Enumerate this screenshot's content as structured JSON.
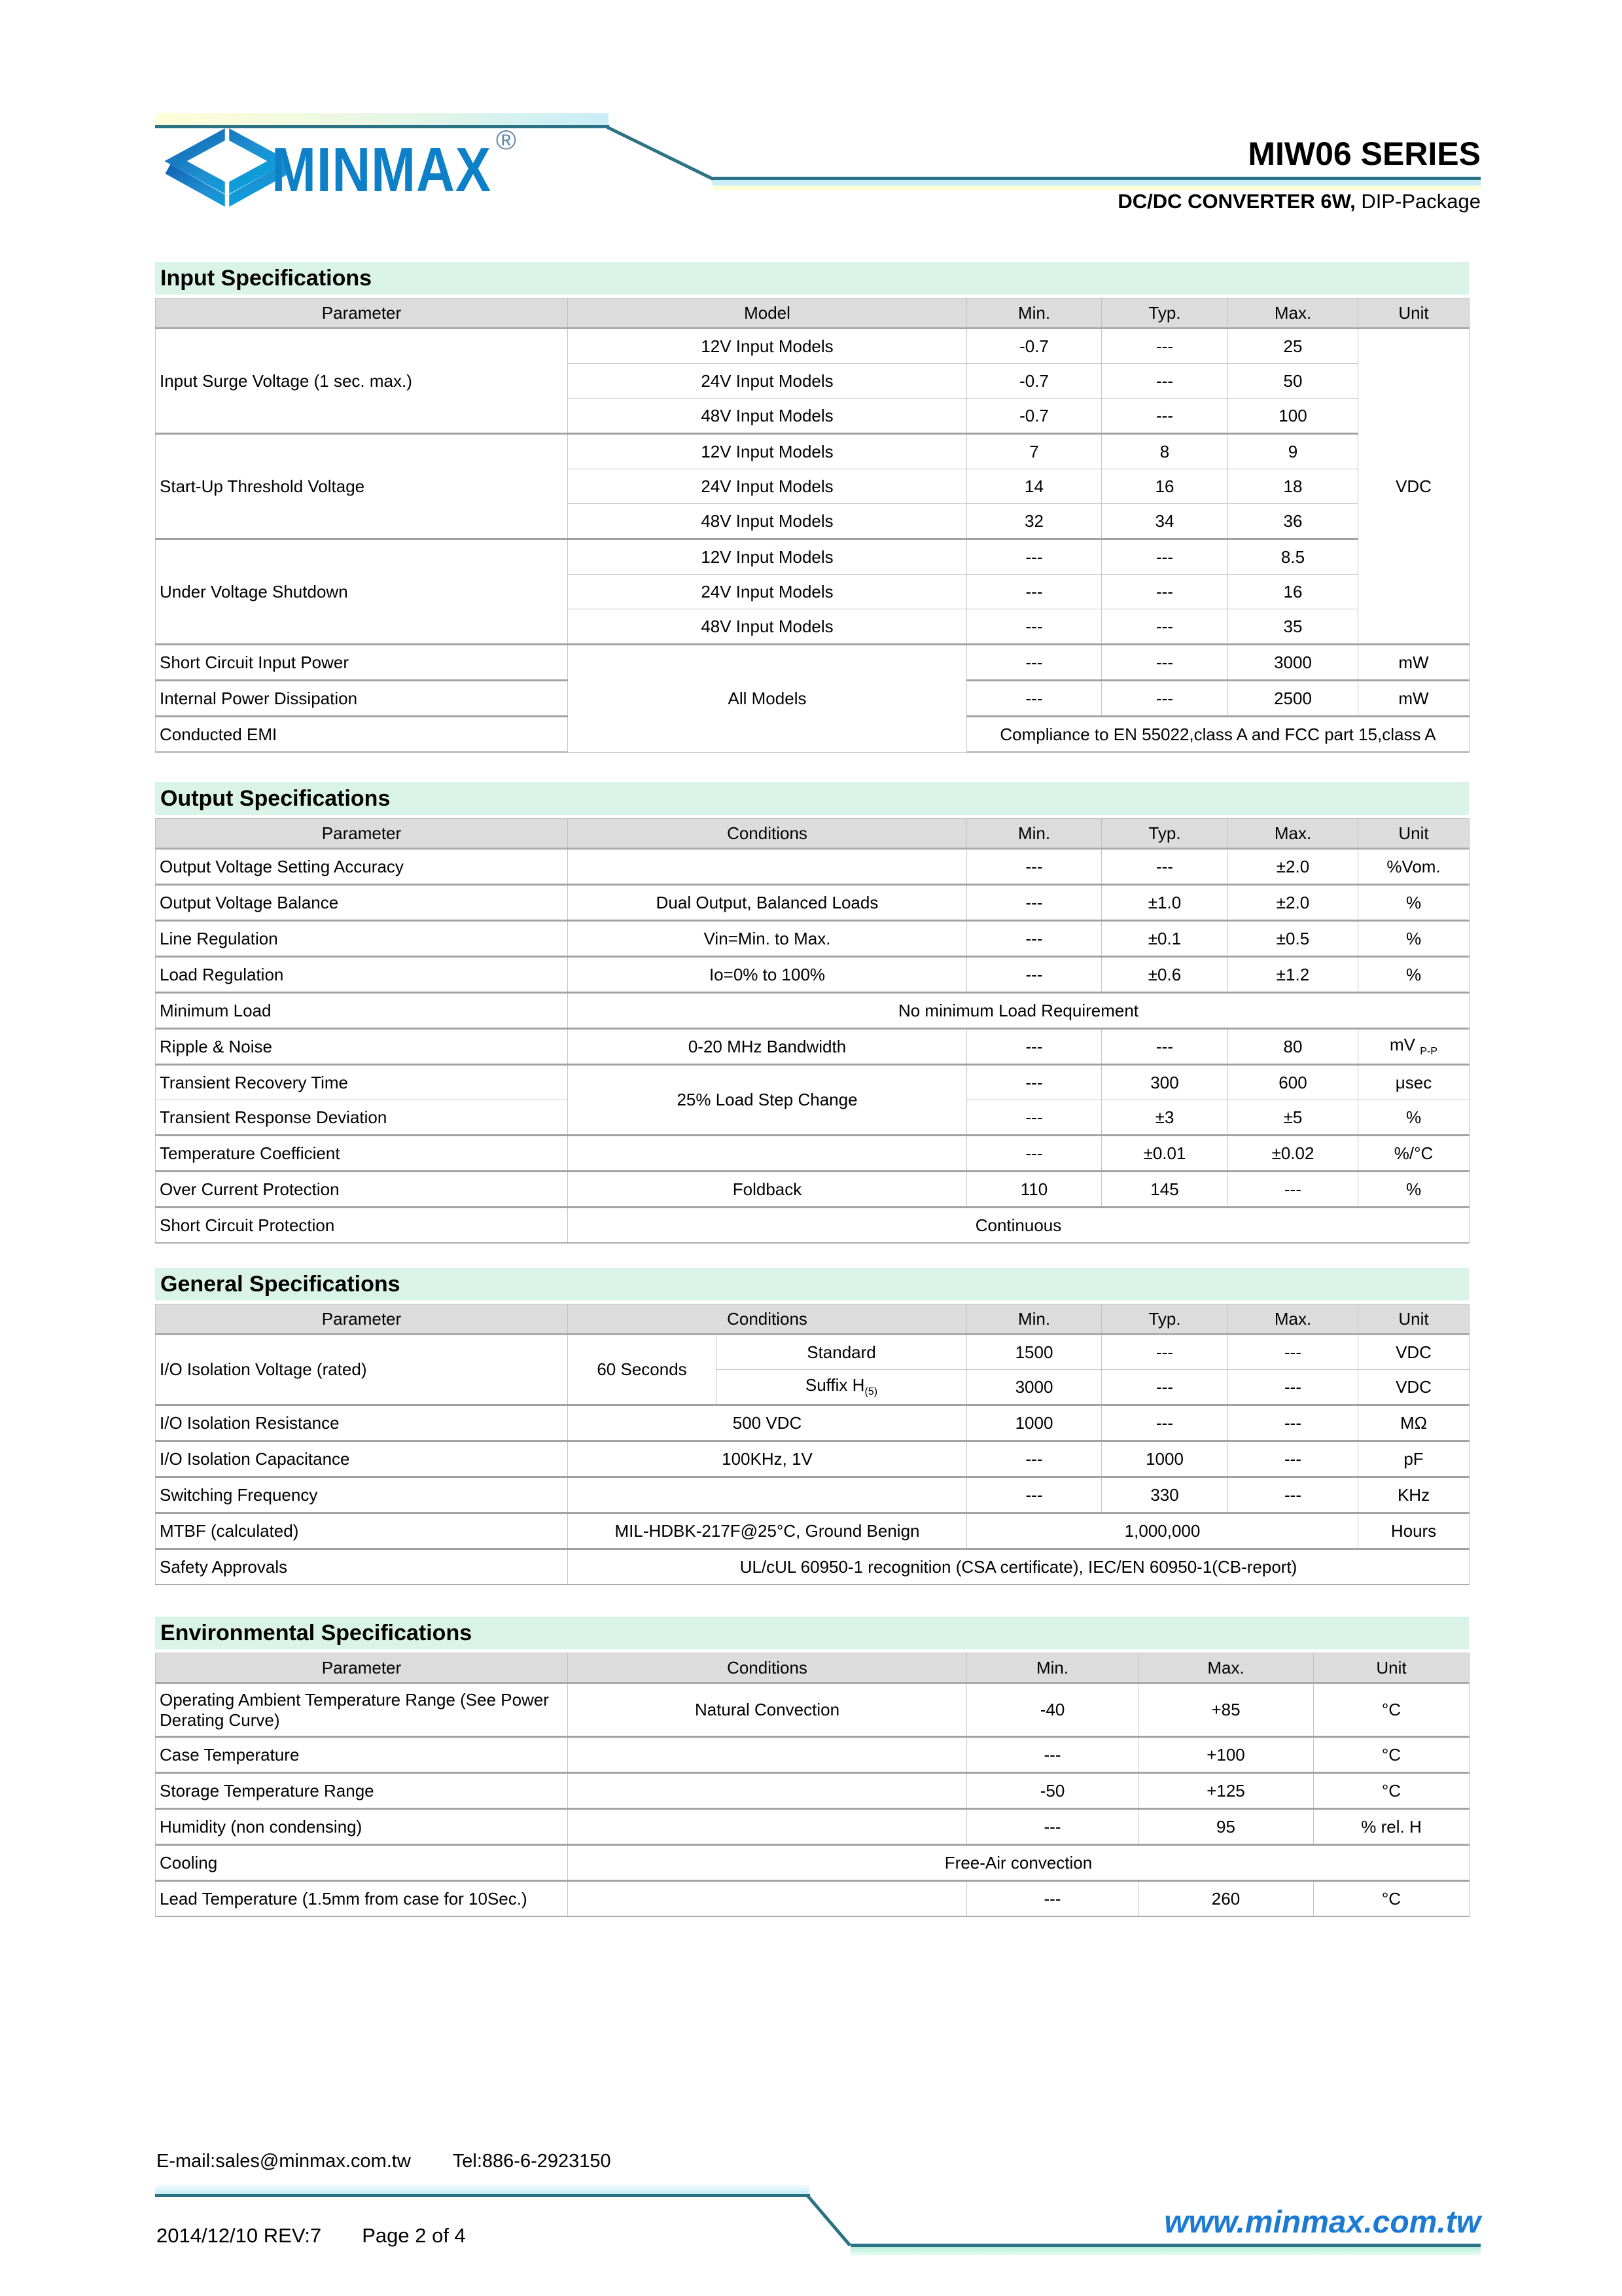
{
  "header": {
    "logo_text": "MINMAX",
    "reg_mark": "®",
    "series_title": "MIW06 SERIES",
    "subtitle_bold": "DC/DC CONVERTER 6W,",
    "subtitle_rest": " DIP-Package"
  },
  "colors": {
    "accent_teal": "#2b7285",
    "brand_blue": "#0e80c8",
    "url_blue": "#1b7ad2",
    "section_bar_mint": "#d9f3e8",
    "table_header_gray": "#dcdcdc"
  },
  "sections": {
    "input": {
      "title": "Input Specifications"
    },
    "output": {
      "title": "Output Specifications"
    },
    "general": {
      "title": "General Specifications"
    },
    "environmental": {
      "title": "Environmental Specifications"
    }
  },
  "tables": {
    "input": {
      "cols": [
        630,
        610,
        206,
        193,
        199,
        170
      ],
      "head": [
        {
          "t": "Parameter"
        },
        {
          "t": "Model"
        },
        {
          "t": "Min."
        },
        {
          "t": "Typ."
        },
        {
          "t": "Max."
        },
        {
          "t": "Unit"
        }
      ],
      "rows": [
        {
          "c": [
            {
              "t": "Input Surge Voltage (1 sec. max.)",
              "p": 1,
              "rs": 3
            },
            {
              "t": "12V Input Models"
            },
            {
              "t": "-0.7"
            },
            {
              "t": "---"
            },
            {
              "t": "25"
            },
            {
              "t": "VDC",
              "rs": 9
            }
          ]
        },
        {
          "c": [
            {
              "t": "24V Input Models"
            },
            {
              "t": "-0.7"
            },
            {
              "t": "---"
            },
            {
              "t": "50"
            }
          ]
        },
        {
          "c": [
            {
              "t": "48V Input Models"
            },
            {
              "t": "-0.7"
            },
            {
              "t": "---"
            },
            {
              "t": "100"
            }
          ]
        },
        {
          "g": 1,
          "c": [
            {
              "t": "Start-Up Threshold Voltage",
              "p": 1,
              "rs": 3
            },
            {
              "t": "12V Input Models"
            },
            {
              "t": "7"
            },
            {
              "t": "8"
            },
            {
              "t": "9"
            }
          ]
        },
        {
          "c": [
            {
              "t": "24V Input Models"
            },
            {
              "t": "14"
            },
            {
              "t": "16"
            },
            {
              "t": "18"
            }
          ]
        },
        {
          "c": [
            {
              "t": "48V Input Models"
            },
            {
              "t": "32"
            },
            {
              "t": "34"
            },
            {
              "t": "36"
            }
          ]
        },
        {
          "g": 1,
          "c": [
            {
              "t": "Under Voltage Shutdown",
              "p": 1,
              "rs": 3
            },
            {
              "t": "12V Input Models"
            },
            {
              "t": "---"
            },
            {
              "t": "---"
            },
            {
              "t": "8.5"
            }
          ]
        },
        {
          "c": [
            {
              "t": "24V Input Models"
            },
            {
              "t": "---"
            },
            {
              "t": "---"
            },
            {
              "t": "16"
            }
          ]
        },
        {
          "c": [
            {
              "t": "48V Input Models"
            },
            {
              "t": "---"
            },
            {
              "t": "---"
            },
            {
              "t": "35"
            }
          ]
        },
        {
          "g": 1,
          "c": [
            {
              "t": "Short Circuit Input Power",
              "p": 1
            },
            {
              "t": "All Models",
              "rs": 3
            },
            {
              "t": "---"
            },
            {
              "t": "---"
            },
            {
              "t": "3000"
            },
            {
              "t": "mW"
            }
          ]
        },
        {
          "g": 1,
          "c": [
            {
              "t": "Internal Power Dissipation",
              "p": 1
            },
            {
              "t": "---"
            },
            {
              "t": "---"
            },
            {
              "t": "2500"
            },
            {
              "t": "mW"
            }
          ]
        },
        {
          "g": 1,
          "c": [
            {
              "t": "Conducted EMI",
              "p": 1
            },
            {
              "t": "Compliance to EN 55022,class A and FCC part 15,class A",
              "cs": 4
            }
          ]
        }
      ]
    },
    "output": {
      "cols": [
        630,
        610,
        206,
        193,
        199,
        170
      ],
      "head": [
        {
          "t": "Parameter"
        },
        {
          "t": "Conditions"
        },
        {
          "t": "Min."
        },
        {
          "t": "Typ."
        },
        {
          "t": "Max."
        },
        {
          "t": "Unit"
        }
      ],
      "rows": [
        {
          "g": 1,
          "c": [
            {
              "t": "Output Voltage Setting Accuracy",
              "p": 1
            },
            {
              "t": ""
            },
            {
              "t": "---"
            },
            {
              "t": "---"
            },
            {
              "t": "±2.0"
            },
            {
              "t": "%Vom."
            }
          ]
        },
        {
          "g": 1,
          "c": [
            {
              "t": "Output Voltage Balance",
              "p": 1
            },
            {
              "t": "Dual Output, Balanced Loads"
            },
            {
              "t": "---"
            },
            {
              "t": "±1.0"
            },
            {
              "t": "±2.0"
            },
            {
              "t": "%"
            }
          ]
        },
        {
          "g": 1,
          "c": [
            {
              "t": "Line Regulation",
              "p": 1
            },
            {
              "t": "Vin=Min. to Max."
            },
            {
              "t": "---"
            },
            {
              "t": "±0.1"
            },
            {
              "t": "±0.5"
            },
            {
              "t": "%"
            }
          ]
        },
        {
          "g": 1,
          "c": [
            {
              "t": "Load Regulation",
              "p": 1
            },
            {
              "t": "Io=0% to 100%"
            },
            {
              "t": "---"
            },
            {
              "t": "±0.6"
            },
            {
              "t": "±1.2"
            },
            {
              "t": "%"
            }
          ]
        },
        {
          "g": 1,
          "c": [
            {
              "t": "Minimum Load",
              "p": 1
            },
            {
              "t": "No minimum Load Requirement",
              "cs": 5
            }
          ]
        },
        {
          "g": 1,
          "c": [
            {
              "t": "Ripple & Noise",
              "p": 1
            },
            {
              "t": "0-20 MHz Bandwidth"
            },
            {
              "t": "---"
            },
            {
              "t": "---"
            },
            {
              "t": "80"
            },
            {
              "t": "mV ",
              "sub": "P-P"
            }
          ]
        },
        {
          "g": 1,
          "c": [
            {
              "t": "Transient Recovery Time",
              "p": 1
            },
            {
              "t": "25% Load Step Change",
              "rs": 2
            },
            {
              "t": "---"
            },
            {
              "t": "300"
            },
            {
              "t": "600"
            },
            {
              "t": "μsec"
            }
          ]
        },
        {
          "c": [
            {
              "t": "Transient Response Deviation",
              "p": 1
            },
            {
              "t": "---"
            },
            {
              "t": "±3"
            },
            {
              "t": "±5"
            },
            {
              "t": "%"
            }
          ]
        },
        {
          "g": 1,
          "c": [
            {
              "t": "Temperature Coefficient",
              "p": 1
            },
            {
              "t": ""
            },
            {
              "t": "---"
            },
            {
              "t": "±0.01"
            },
            {
              "t": "±0.02"
            },
            {
              "t": "%/°C"
            }
          ]
        },
        {
          "g": 1,
          "c": [
            {
              "t": "Over Current Protection",
              "p": 1
            },
            {
              "t": "Foldback"
            },
            {
              "t": "110"
            },
            {
              "t": "145"
            },
            {
              "t": "---"
            },
            {
              "t": "%"
            }
          ]
        },
        {
          "g": 1,
          "c": [
            {
              "t": "Short Circuit Protection",
              "p": 1
            },
            {
              "t": "Continuous",
              "cs": 5
            }
          ]
        }
      ]
    },
    "general": {
      "cols": [
        630,
        227,
        383,
        206,
        193,
        199,
        170
      ],
      "head": [
        {
          "t": "Parameter"
        },
        {
          "t": "Conditions",
          "cs": 2
        },
        {
          "t": "Min."
        },
        {
          "t": "Typ."
        },
        {
          "t": "Max."
        },
        {
          "t": "Unit"
        }
      ],
      "rows": [
        {
          "g": 1,
          "c": [
            {
              "t": "I/O Isolation Voltage (rated)",
              "p": 1,
              "rs": 2
            },
            {
              "t": "60 Seconds",
              "rs": 2
            },
            {
              "t": "Standard"
            },
            {
              "t": "1500"
            },
            {
              "t": "---"
            },
            {
              "t": "---"
            },
            {
              "t": "VDC"
            }
          ]
        },
        {
          "c": [
            {
              "t": "Suffix H",
              "sub": "(5)"
            },
            {
              "t": "3000"
            },
            {
              "t": "---"
            },
            {
              "t": "---"
            },
            {
              "t": "VDC"
            }
          ]
        },
        {
          "g": 1,
          "c": [
            {
              "t": "I/O Isolation Resistance",
              "p": 1
            },
            {
              "t": "500 VDC",
              "cs": 2
            },
            {
              "t": "1000"
            },
            {
              "t": "---"
            },
            {
              "t": "---"
            },
            {
              "t": "MΩ"
            }
          ]
        },
        {
          "g": 1,
          "c": [
            {
              "t": "I/O Isolation Capacitance",
              "p": 1
            },
            {
              "t": "100KHz, 1V",
              "cs": 2
            },
            {
              "t": "---"
            },
            {
              "t": "1000"
            },
            {
              "t": "---"
            },
            {
              "t": "pF"
            }
          ]
        },
        {
          "g": 1,
          "c": [
            {
              "t": "Switching Frequency",
              "p": 1
            },
            {
              "t": "",
              "cs": 2
            },
            {
              "t": "---"
            },
            {
              "t": "330"
            },
            {
              "t": "---"
            },
            {
              "t": "KHz"
            }
          ]
        },
        {
          "g": 1,
          "c": [
            {
              "t": "MTBF (calculated)",
              "p": 1
            },
            {
              "t": "MIL-HDBK-217F@25°C, Ground Benign",
              "cs": 2
            },
            {
              "t": "1,000,000",
              "cs": 3
            },
            {
              "t": "Hours"
            }
          ]
        },
        {
          "g": 1,
          "c": [
            {
              "t": "Safety Approvals",
              "p": 1
            },
            {
              "t": "UL/cUL 60950-1 recognition (CSA certificate), IEC/EN 60950-1(CB-report)",
              "cs": 6
            }
          ]
        }
      ]
    },
    "environmental": {
      "cols": [
        630,
        610,
        262,
        268,
        238
      ],
      "head": [
        {
          "t": "Parameter"
        },
        {
          "t": "Conditions"
        },
        {
          "t": "Min."
        },
        {
          "t": "Max."
        },
        {
          "t": "Unit"
        }
      ],
      "rows": [
        {
          "g": 1,
          "h": 82,
          "c": [
            {
              "t": "Operating Ambient Temperature Range (See Power Derating Curve)",
              "p": 1
            },
            {
              "t": "Natural Convection"
            },
            {
              "t": "-40"
            },
            {
              "t": "+85"
            },
            {
              "t": "°C"
            }
          ]
        },
        {
          "g": 1,
          "c": [
            {
              "t": "Case Temperature",
              "p": 1
            },
            {
              "t": ""
            },
            {
              "t": "---"
            },
            {
              "t": "+100"
            },
            {
              "t": "°C"
            }
          ]
        },
        {
          "g": 1,
          "c": [
            {
              "t": "Storage Temperature Range",
              "p": 1
            },
            {
              "t": ""
            },
            {
              "t": "-50"
            },
            {
              "t": "+125"
            },
            {
              "t": "°C"
            }
          ]
        },
        {
          "g": 1,
          "c": [
            {
              "t": "Humidity (non condensing)",
              "p": 1
            },
            {
              "t": ""
            },
            {
              "t": "---"
            },
            {
              "t": "95"
            },
            {
              "t": "% rel. H"
            }
          ]
        },
        {
          "g": 1,
          "c": [
            {
              "t": "Cooling",
              "p": 1
            },
            {
              "t": "Free-Air convection",
              "cs": 4
            }
          ]
        },
        {
          "g": 1,
          "c": [
            {
              "t": "Lead Temperature (1.5mm from case for 10Sec.)",
              "p": 1
            },
            {
              "t": ""
            },
            {
              "t": "---"
            },
            {
              "t": "260"
            },
            {
              "t": "°C"
            }
          ]
        }
      ]
    }
  },
  "footer": {
    "email": "E-mail:sales@minmax.com.tw",
    "tel": "Tel:886-6-2923150",
    "revision": "2014/12/10 REV:7",
    "page": "Page 2 of 4",
    "url": "www.minmax.com.tw"
  }
}
